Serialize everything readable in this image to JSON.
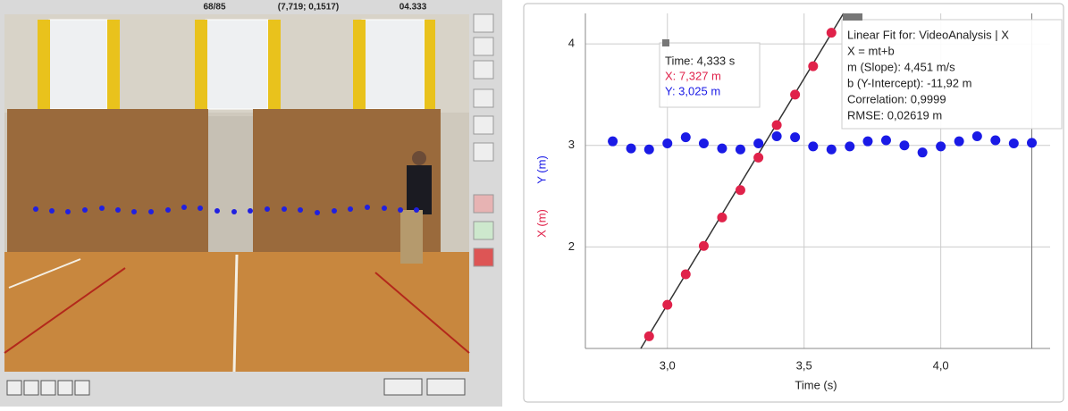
{
  "video_panel": {
    "frame": "68/85",
    "coordinates": "(7,719; 0,1517)",
    "time": "04.333"
  },
  "chart_data": {
    "type": "scatter",
    "x_label": "Time (s)",
    "xlim": [
      2.7,
      4.4
    ],
    "xticks": [
      {
        "value": 3,
        "label": "3,0"
      },
      {
        "value": 3.5,
        "label": "3,5"
      },
      {
        "value": 4,
        "label": "4,0"
      }
    ],
    "ylim": [
      1.0,
      4.3
    ],
    "yticks": [
      2,
      3,
      4
    ],
    "grid": true,
    "series": [
      {
        "name": "X (m)",
        "color": "#e0224a",
        "x": [
          2.933,
          3.0,
          3.067,
          3.133,
          3.2,
          3.267,
          3.333,
          3.4,
          3.467,
          3.533,
          3.6
        ],
        "values": [
          1.12,
          1.43,
          1.73,
          2.01,
          2.29,
          2.56,
          2.88,
          3.2,
          3.5,
          3.78,
          4.11
        ]
      },
      {
        "name": "Y (m)",
        "color": "#1a1ae6",
        "x": [
          2.8,
          2.867,
          2.933,
          3.0,
          3.067,
          3.133,
          3.2,
          3.267,
          3.333,
          3.4,
          3.467,
          3.533,
          3.6,
          3.667,
          3.733,
          3.8,
          3.867,
          3.933,
          4.0,
          4.067,
          4.133,
          4.2,
          4.267,
          4.333
        ],
        "values": [
          3.04,
          2.97,
          2.96,
          3.02,
          3.08,
          3.02,
          2.97,
          2.96,
          3.02,
          3.09,
          3.08,
          2.99,
          2.96,
          2.99,
          3.04,
          3.05,
          3.0,
          2.93,
          2.99,
          3.04,
          3.09,
          3.05,
          3.02,
          3.025
        ]
      }
    ],
    "cursor": {
      "x": 4.333,
      "lines": [
        "Time: 4,333 s",
        "X: 7,327 m",
        "Y: 3,025 m"
      ]
    },
    "fit": {
      "slope": 4.451,
      "intercept": -11.92,
      "lines": [
        "Linear Fit for: VideoAnalysis | X",
        "X = mt+b",
        "m (Slope): 4,451 m/s",
        "b (Y-Intercept): -11,92 m",
        "Correlation: 0,9999",
        "RMSE: 0,02619 m"
      ]
    }
  }
}
